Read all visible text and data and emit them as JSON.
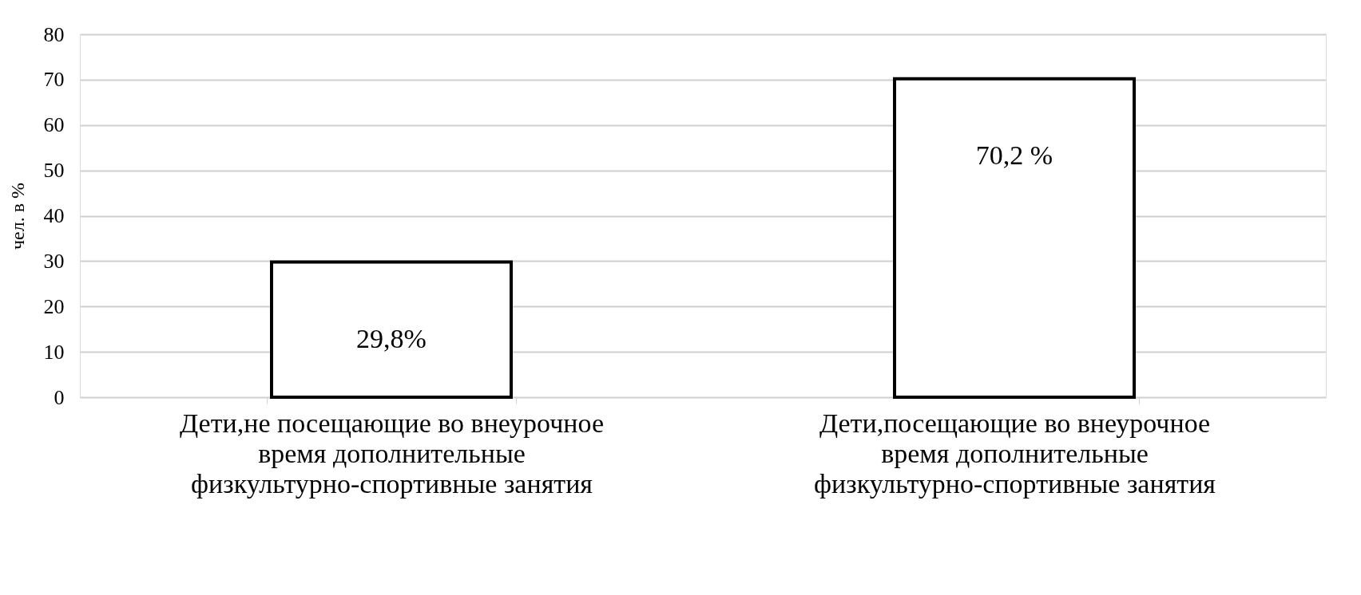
{
  "chart_data": {
    "type": "bar",
    "ylabel": "чел. в %",
    "categories": [
      "Дети,не посещающие во внеурочное время дополнительные физкультурно-спортивные занятия",
      "Дети,посещающие во внеурочное время дополнительные физкультурно-спортивные занятия"
    ],
    "values": [
      29.8,
      70.2
    ],
    "color": "#ffffff",
    "value_labels": [
      "29,8%",
      "70,2 %"
    ],
    "ylim": [
      0,
      80
    ],
    "yticks": [
      0,
      10,
      20,
      30,
      40,
      50,
      60,
      70,
      80
    ],
    "grid": "y"
  }
}
